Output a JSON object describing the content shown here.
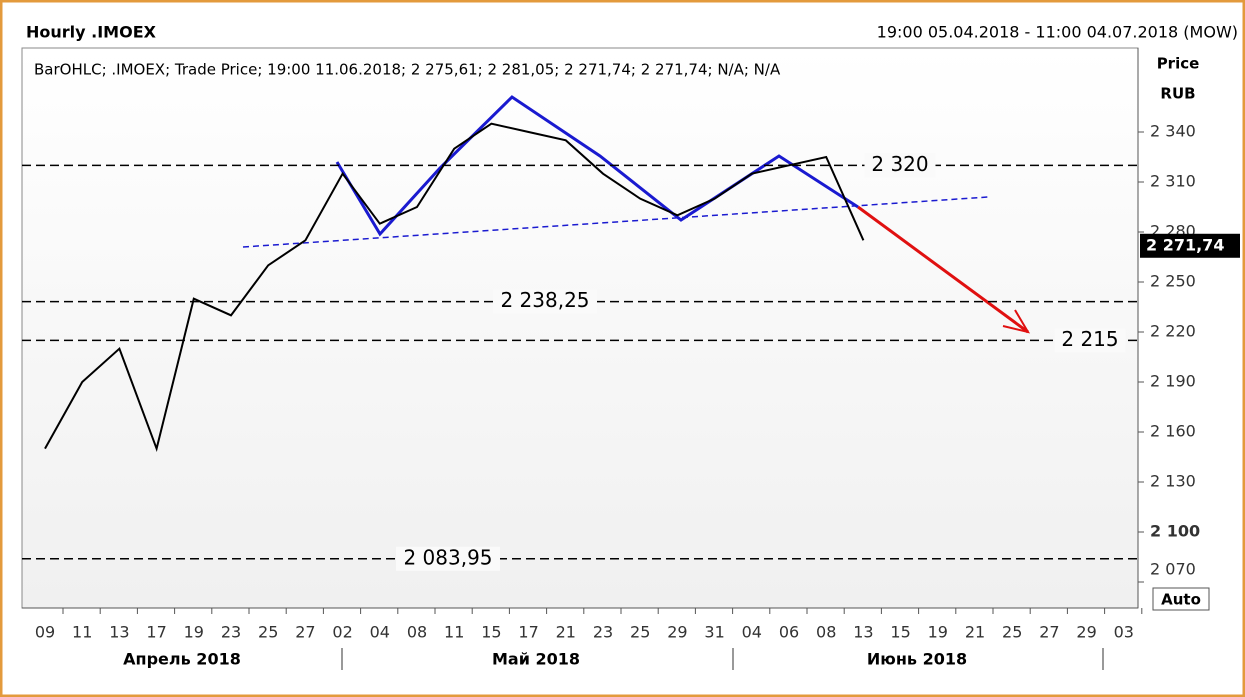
{
  "chart_data": {
    "type": "line",
    "title": "Hourly .IMOEX",
    "date_range": "19:00 05.04.2018 - 11:00 04.07.2018 (MOW)",
    "subtitle": "BarOHLC; .IMOEX; Trade Price; 19:00 11.06.2018; 2 275,61; 2 281,05; 2 271,74; 2 271,74; N/A; N/A",
    "y_axis_label": "Price",
    "y_axis_unit": "RUB",
    "auto_button": "Auto",
    "categories": [
      "09",
      "11",
      "13",
      "17",
      "19",
      "23",
      "25",
      "27",
      "02",
      "04",
      "08",
      "11",
      "15",
      "17",
      "21",
      "23",
      "25",
      "29",
      "31",
      "04",
      "06",
      "08",
      "13",
      "15",
      "19",
      "21",
      "25",
      "27",
      "29",
      "03"
    ],
    "months": [
      "Апрель 2018",
      "Май 2018",
      "Июнь 2018"
    ],
    "series": [
      {
        "name": ".IMOEX",
        "color": "#000000",
        "values": [
          2150,
          2190,
          2210,
          2150,
          2240,
          2230,
          2260,
          2275,
          2315,
          2285,
          2295,
          2330,
          2345,
          2340,
          2335,
          2315,
          2300,
          2290,
          2300,
          2315,
          2320,
          2325,
          2275,
          null,
          null,
          null,
          null,
          null,
          null,
          null
        ]
      }
    ],
    "last_price": {
      "value": 2271.74,
      "label": "2 271,74"
    },
    "levels": [
      {
        "value": 2320,
        "label": "2 320"
      },
      {
        "value": 2238.25,
        "label": "2 238,25"
      },
      {
        "value": 2215,
        "label": "2 215"
      },
      {
        "value": 2083.95,
        "label": "2 083,95"
      }
    ],
    "ylim": [
      2054.4,
      2390.4
    ],
    "yticks": [
      {
        "value": 2070,
        "label": "2 070"
      },
      {
        "value": 2100,
        "label": "2 100"
      },
      {
        "value": 2130,
        "label": "2 130"
      },
      {
        "value": 2160,
        "label": "2 160"
      },
      {
        "value": 2190,
        "label": "2 190"
      },
      {
        "value": 2220,
        "label": "2 220"
      },
      {
        "value": 2250,
        "label": "2 250"
      },
      {
        "value": 2280,
        "label": "2 280"
      },
      {
        "value": 2310,
        "label": "2 310"
      },
      {
        "value": 2340,
        "label": "2 340"
      }
    ],
    "grid": false
  }
}
